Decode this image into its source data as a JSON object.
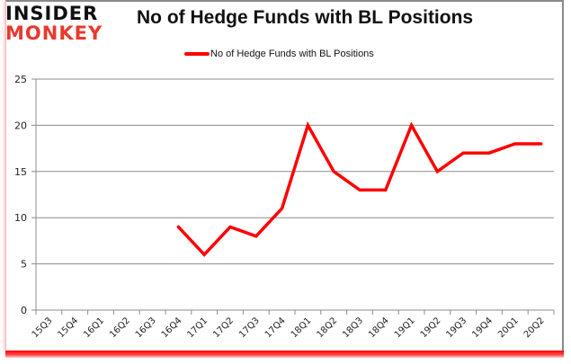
{
  "brand": {
    "line1": "INSIDER",
    "line2": "MONKEY",
    "line1_color": "#111111",
    "line2_color": "#e8392e"
  },
  "header": {
    "title": "No of Hedge Funds with BL Positions"
  },
  "legend": {
    "label": "No of Hedge Funds with BL Positions",
    "color": "#ff0000"
  },
  "chart_data": {
    "type": "line",
    "title": "No of Hedge Funds with BL Positions",
    "xlabel": "",
    "ylabel": "",
    "ylim": [
      0,
      25
    ],
    "yticks": [
      0,
      5,
      10,
      15,
      20,
      25
    ],
    "grid": true,
    "legend_position": "top",
    "categories": [
      "15Q3",
      "15Q4",
      "16Q1",
      "16Q2",
      "16Q3",
      "16Q4",
      "17Q1",
      "17Q2",
      "17Q3",
      "17Q4",
      "18Q1",
      "18Q2",
      "18Q3",
      "18Q4",
      "19Q1",
      "19Q2",
      "19Q3",
      "19Q4",
      "20Q1",
      "20Q2"
    ],
    "series": [
      {
        "name": "No of Hedge Funds with BL Positions",
        "color": "#ff0000",
        "values": [
          null,
          null,
          null,
          null,
          null,
          9,
          6,
          9,
          8,
          11,
          20,
          15,
          13,
          13,
          20,
          15,
          17,
          17,
          18,
          18
        ]
      }
    ]
  }
}
